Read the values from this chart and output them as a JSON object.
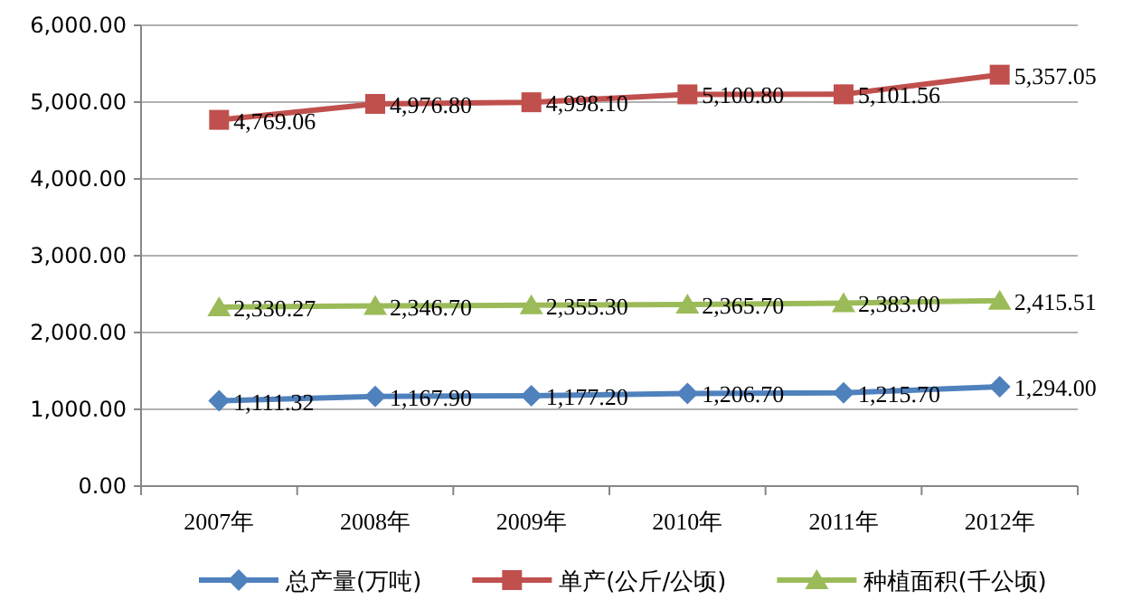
{
  "chart_data": {
    "type": "line",
    "categories": [
      "2007年",
      "2008年",
      "2009年",
      "2010年",
      "2011年",
      "2012年"
    ],
    "series": [
      {
        "name": "总产量(万吨)",
        "color": "#4f81bd",
        "marker": "diamond",
        "values": [
          1111.32,
          1167.9,
          1177.2,
          1206.7,
          1215.7,
          1294.0
        ],
        "value_labels": [
          "1,111.32",
          "1,167.90",
          "1,177.20",
          "1,206.70",
          "1,215.70",
          "1,294.00"
        ]
      },
      {
        "name": "单产(公斤/公顷)",
        "color": "#c0504d",
        "marker": "square",
        "values": [
          4769.06,
          4976.8,
          4998.1,
          5100.8,
          5101.56,
          5357.05
        ],
        "value_labels": [
          "4,769.06",
          "4,976.80",
          "4,998.10",
          "5,100.80",
          "5,101.56",
          "5,357.05"
        ]
      },
      {
        "name": "种植面积(千公顷)",
        "color": "#9bbb59",
        "marker": "triangle",
        "values": [
          2330.27,
          2346.7,
          2355.3,
          2365.7,
          2383.0,
          2415.51
        ],
        "value_labels": [
          "2,330.27",
          "2,346.70",
          "2,355.30",
          "2,365.70",
          "2,383.00",
          "2,415.51"
        ]
      }
    ],
    "ylim": [
      0,
      6000
    ],
    "yticks": [
      {
        "value": 0,
        "label": "0.00"
      },
      {
        "value": 1000,
        "label": "1,000.00"
      },
      {
        "value": 2000,
        "label": "2,000.00"
      },
      {
        "value": 3000,
        "label": "3,000.00"
      },
      {
        "value": 4000,
        "label": "4,000.00"
      },
      {
        "value": 5000,
        "label": "5,000.00"
      },
      {
        "value": 6000,
        "label": "6,000.00"
      }
    ],
    "grid": "y",
    "legend": "bottom",
    "line_style": "solid"
  }
}
